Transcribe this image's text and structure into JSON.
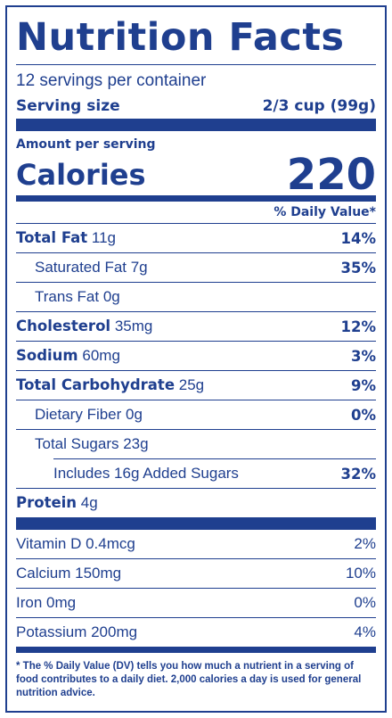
{
  "title": "Nutrition Facts",
  "servings_per_container": "12 servings per container",
  "serving_size": {
    "label": "Serving size",
    "value": "2/3 cup (99g)"
  },
  "amount_per_serving": "Amount per serving",
  "calories": {
    "label": "Calories",
    "value": "220"
  },
  "daily_value_header": "% Daily Value*",
  "nutrients": [
    {
      "name": "Total Fat",
      "amount": "11g",
      "dv": "14%"
    },
    {
      "name": "Saturated Fat 7g",
      "dv": "35%"
    },
    {
      "name": "Trans Fat 0g",
      "dv": ""
    },
    {
      "name": "Cholesterol",
      "amount": "35mg",
      "dv": "12%"
    },
    {
      "name": "Sodium",
      "amount": "60mg",
      "dv": "3%"
    },
    {
      "name": "Total Carbohydrate",
      "amount": "25g",
      "dv": "9%"
    },
    {
      "name": "Dietary Fiber 0g",
      "dv": "0%"
    },
    {
      "name": "Total Sugars 23g",
      "dv": ""
    },
    {
      "name": "Includes 16g Added Sugars",
      "dv": "32%"
    },
    {
      "name": "Protein",
      "amount": "4g",
      "dv": ""
    }
  ],
  "vitamins": [
    {
      "name": "Vitamin D 0.4mcg",
      "dv": "2%"
    },
    {
      "name": "Calcium 150mg",
      "dv": "10%"
    },
    {
      "name": "Iron 0mg",
      "dv": "0%"
    },
    {
      "name": "Potassium 200mg",
      "dv": "4%"
    }
  ],
  "footnote": "* The % Daily Value (DV) tells you how much a nutrient in a serving of food contributes to a daily diet. 2,000 calories a day is used for general nutrition advice.",
  "colors": {
    "ink": "#1f3f8f",
    "background": "#ffffff"
  }
}
